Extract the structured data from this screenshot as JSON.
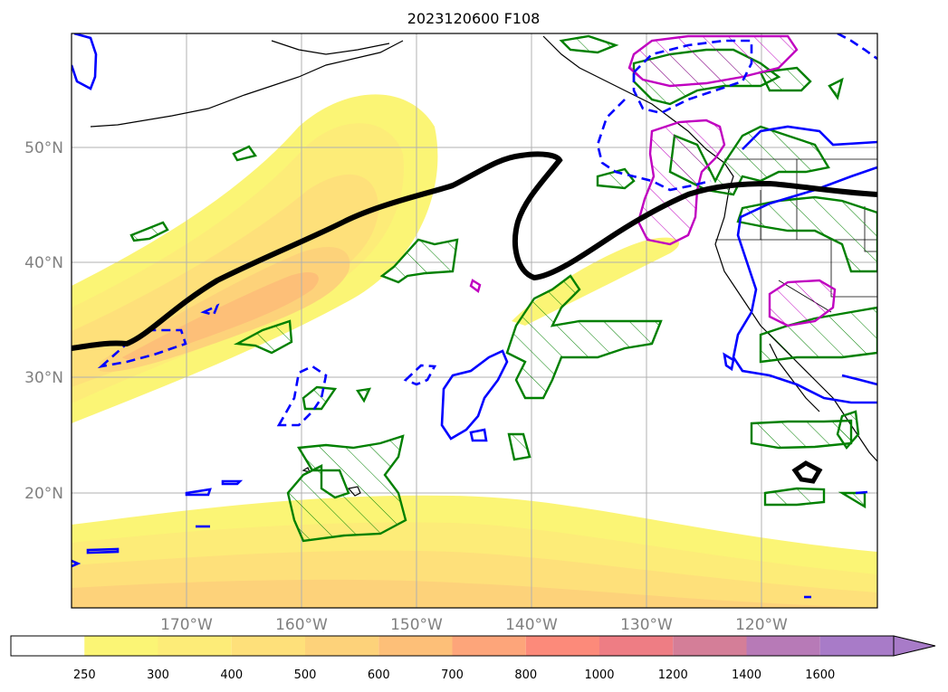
{
  "title": "2023120600 F108",
  "map": {
    "lon_labels": [
      "170°W",
      "160°W",
      "150°W",
      "140°W",
      "130°W",
      "120°W"
    ],
    "lat_labels": [
      "50°N",
      "40°N",
      "30°N",
      "20°N"
    ],
    "colors": {
      "jet_contour": "#000000",
      "hatched_regions": "#008000",
      "magenta_contours": "#c000c0",
      "blue_contours": "#0000ff",
      "gridlines": "#b0b0b0",
      "coastline": "#000000"
    }
  },
  "colorbar": {
    "levels": [
      "250",
      "300",
      "400",
      "500",
      "600",
      "700",
      "800",
      "1000",
      "1200",
      "1400",
      "1600"
    ],
    "colors": [
      "#ffffff",
      "#fbf575",
      "#fdec78",
      "#fee07a",
      "#fdd27a",
      "#fdbf78",
      "#fda57a",
      "#fc8a7a",
      "#ee7d84",
      "#d47e98",
      "#b77ab7",
      "#a87bc8"
    ],
    "extend": "max"
  }
}
